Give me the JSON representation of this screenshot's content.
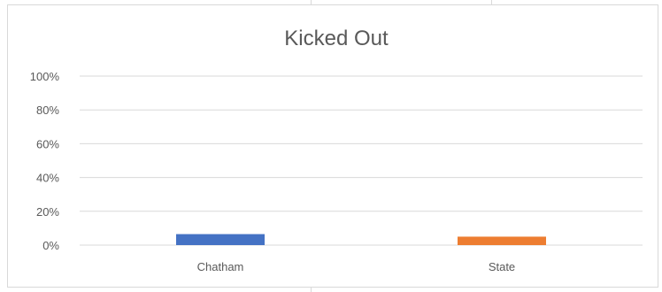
{
  "chart_data": {
    "type": "bar",
    "title": "Kicked Out",
    "categories": [
      "Chatham",
      "State"
    ],
    "values": [
      0.065,
      0.05
    ],
    "colors": [
      "#4472c4",
      "#ed7d31"
    ],
    "ylim": [
      0,
      1
    ],
    "yticks": [
      "0%",
      "20%",
      "40%",
      "60%",
      "80%",
      "100%"
    ],
    "grid": true,
    "legend": "none"
  }
}
